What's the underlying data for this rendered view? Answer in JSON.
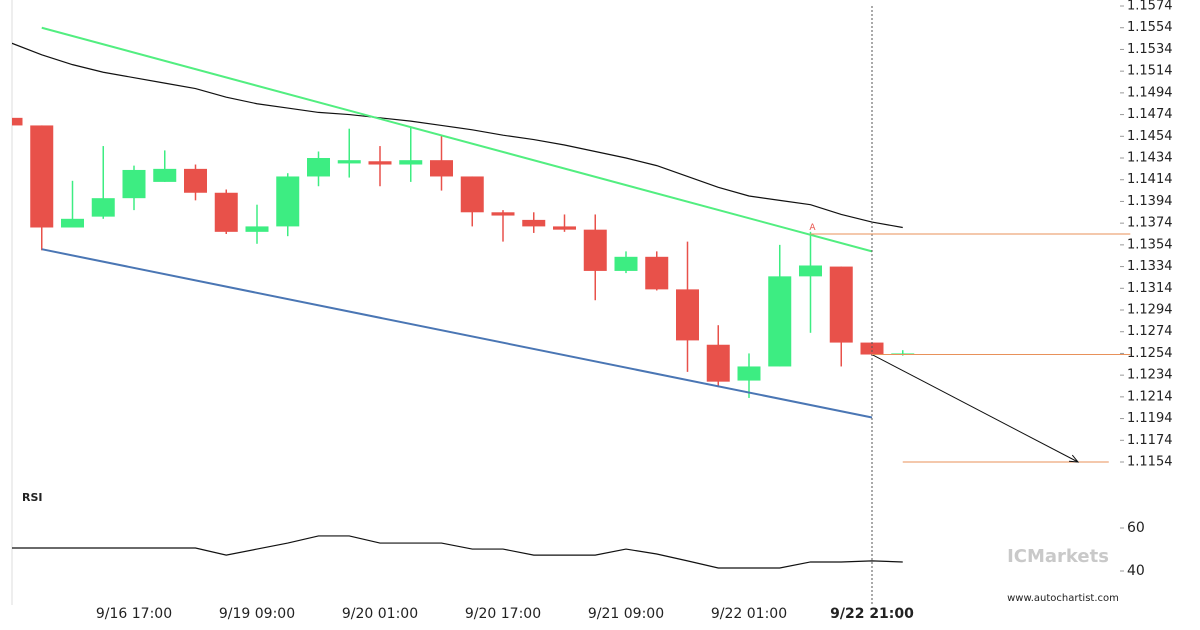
{
  "chart_data": {
    "type": "candlestick",
    "categories": [
      null,
      null,
      null,
      null,
      "9/16 17:00",
      null,
      null,
      null,
      "9/19 09:00",
      null,
      null,
      null,
      "9/20 01:00",
      null,
      null,
      null,
      "9/20 17:00",
      null,
      null,
      null,
      "9/21 09:00",
      null,
      null,
      null,
      "9/22 01:00",
      null,
      null,
      null,
      "9/22 21:00",
      null
    ],
    "open": [
      1.1471,
      1.1464,
      1.137,
      1.138,
      1.1397,
      1.1412,
      1.1424,
      1.1402,
      1.1366,
      1.1371,
      1.1417,
      1.1429,
      1.1431,
      1.1428,
      1.1432,
      1.1417,
      1.1384,
      1.1377,
      1.1371,
      1.1368,
      1.133,
      1.1343,
      1.1313,
      1.1262,
      1.1229,
      1.1242,
      1.1325,
      1.1334,
      1.1264,
      1.1253
    ],
    "high": [
      1.1471,
      1.1464,
      1.1413,
      1.1445,
      1.1427,
      1.1441,
      1.1428,
      1.1405,
      1.1391,
      1.142,
      1.144,
      1.1461,
      1.1445,
      1.1462,
      1.1455,
      1.1417,
      1.1386,
      1.1384,
      1.1382,
      1.1382,
      1.1348,
      1.1348,
      1.1357,
      1.128,
      1.1254,
      1.1354,
      1.1366,
      1.1334,
      1.1264,
      1.1257
    ],
    "low": [
      1.1464,
      1.1349,
      1.137,
      1.1378,
      1.1386,
      1.1412,
      1.1395,
      1.1364,
      1.1355,
      1.1362,
      1.1408,
      1.1416,
      1.1408,
      1.1412,
      1.1404,
      1.1371,
      1.1357,
      1.1365,
      1.1366,
      1.1303,
      1.1328,
      1.1312,
      1.1237,
      1.1223,
      1.1213,
      1.1242,
      1.1273,
      1.1242,
      1.1252,
      1.1252
    ],
    "close": [
      1.1464,
      1.137,
      1.1378,
      1.1397,
      1.1423,
      1.1424,
      1.1402,
      1.1366,
      1.1371,
      1.1417,
      1.1434,
      1.1432,
      1.1428,
      1.1432,
      1.1417,
      1.1384,
      1.1381,
      1.1371,
      1.1368,
      1.133,
      1.1343,
      1.1313,
      1.1266,
      1.1228,
      1.1242,
      1.1325,
      1.1335,
      1.1264,
      1.1253,
      1.1254
    ],
    "up_color": "#3ded82",
    "down_color": "#e8514a",
    "ylim": [
      1.114,
      1.158
    ],
    "yticks": [
      1.1574,
      1.1554,
      1.1534,
      1.1514,
      1.1494,
      1.1474,
      1.1454,
      1.1434,
      1.1414,
      1.1394,
      1.1374,
      1.1354,
      1.1334,
      1.1314,
      1.1294,
      1.1274,
      1.1254,
      1.1234,
      1.1214,
      1.1194,
      1.1174,
      1.1154
    ],
    "moving_average": {
      "color": "#111111",
      "values": [
        1.154,
        1.1529,
        1.152,
        1.1513,
        1.1508,
        1.1503,
        1.1498,
        1.149,
        1.1484,
        1.148,
        1.1476,
        1.1474,
        1.1471,
        1.1468,
        1.1464,
        1.146,
        1.1455,
        1.1451,
        1.1446,
        1.144,
        1.1434,
        1.1427,
        1.1417,
        1.1407,
        1.1399,
        1.1395,
        1.1391,
        1.1382,
        1.1375,
        1.137
      ]
    },
    "channel": [
      {
        "color": "#52ee80",
        "x": [
          1,
          28
        ],
        "values": [
          1.1554,
          1.1348
        ]
      },
      {
        "color": "#4a76b4",
        "x": [
          1,
          28
        ],
        "values": [
          1.135,
          1.1195
        ]
      }
    ],
    "levels": [
      {
        "color": "#e8915a",
        "x": [
          26,
          36.4
        ],
        "value": 1.1364
      },
      {
        "color": "#e8915a",
        "x": [
          28,
          36.4
        ],
        "value": 1.1253
      },
      {
        "color": "#e8915a",
        "x": [
          29,
          35.7
        ],
        "value": 1.1154
      }
    ],
    "forecast": {
      "color": "#111111",
      "x": [
        28,
        34.7
      ],
      "values": [
        1.1253,
        1.1154
      ]
    },
    "annotation": {
      "text": "A",
      "x": 26,
      "value": 1.137
    },
    "cursor_x": 28,
    "rsi": {
      "label": "RSI",
      "color": "#111111",
      "ylim": [
        35,
        70
      ],
      "yticks": [
        60,
        40
      ],
      "values": [
        50.7,
        50.7,
        50.7,
        50.7,
        50.7,
        50.7,
        50.7,
        47.4,
        50.2,
        53,
        56.3,
        56.3,
        53,
        53,
        53,
        50.2,
        50.2,
        47.4,
        47.4,
        47.4,
        50.2,
        47.9,
        44.7,
        41.4,
        41.4,
        41.4,
        44.2,
        44.2,
        44.7,
        44.2
      ]
    },
    "watermark": "ICMarkets",
    "source": "www.autochartist.com"
  }
}
